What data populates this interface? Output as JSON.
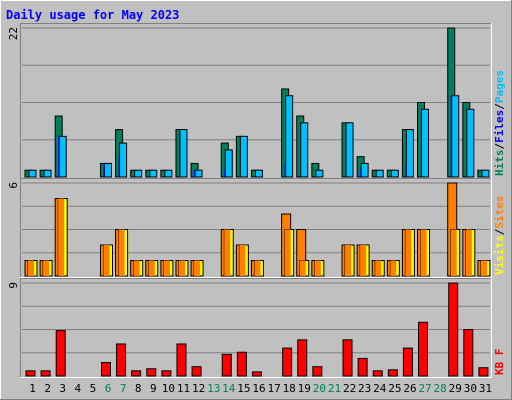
{
  "title": "Daily usage for May 2023",
  "colors": {
    "background": "#c0c0c0",
    "title": "#0000ff",
    "hits": "#00805c",
    "files": "#00c0ff",
    "pages": "#00c0ff",
    "visits": "#ffff00",
    "sites": "#ff8000",
    "kbytes": "#ff0000",
    "weekend": "#00805c",
    "weekday": "#000000"
  },
  "chart_data": [
    {
      "type": "bar",
      "panel": "hits-files-pages",
      "categories": [
        "1",
        "2",
        "3",
        "4",
        "5",
        "6",
        "7",
        "8",
        "9",
        "10",
        "11",
        "12",
        "13",
        "14",
        "15",
        "16",
        "17",
        "18",
        "19",
        "20",
        "21",
        "22",
        "23",
        "24",
        "25",
        "26",
        "27",
        "28",
        "29",
        "30",
        "31"
      ],
      "weekend_days": [
        "6",
        "7",
        "13",
        "14",
        "20",
        "21",
        "27",
        "28"
      ],
      "scale_max_label": "22",
      "ylim": [
        0,
        22
      ],
      "legend": [
        {
          "label": "Hits",
          "color": "#00805c"
        },
        {
          "label": "Files",
          "color": "#0000ff"
        },
        {
          "label": "Pages",
          "color": "#00c0ff"
        }
      ],
      "separator": "/",
      "series": [
        {
          "name": "Hits",
          "values": [
            1,
            1,
            9,
            0,
            0,
            2,
            7,
            1,
            1,
            1,
            7,
            2,
            0,
            5,
            6,
            1,
            0,
            13,
            9,
            2,
            0,
            8,
            3,
            1,
            1,
            7,
            11,
            0,
            22,
            11,
            1
          ]
        },
        {
          "name": "Files",
          "values": [
            1,
            1,
            6,
            0,
            0,
            2,
            5,
            1,
            1,
            1,
            7,
            1,
            0,
            4,
            6,
            1,
            0,
            12,
            8,
            1,
            0,
            8,
            2,
            1,
            1,
            7,
            10,
            0,
            12,
            10,
            1
          ]
        },
        {
          "name": "Pages",
          "values": [
            0,
            0,
            6,
            0,
            0,
            2,
            3,
            0,
            0,
            0,
            0,
            1,
            0,
            1,
            0,
            0,
            0,
            2,
            0,
            0,
            0,
            0,
            1,
            0,
            0,
            2,
            0,
            0,
            12,
            0,
            0
          ]
        }
      ]
    },
    {
      "type": "bar",
      "panel": "visits-sites",
      "categories": [
        "1",
        "2",
        "3",
        "4",
        "5",
        "6",
        "7",
        "8",
        "9",
        "10",
        "11",
        "12",
        "13",
        "14",
        "15",
        "16",
        "17",
        "18",
        "19",
        "20",
        "21",
        "22",
        "23",
        "24",
        "25",
        "26",
        "27",
        "28",
        "29",
        "30",
        "31"
      ],
      "scale_max_label": "6",
      "ylim": [
        0,
        6
      ],
      "legend": [
        {
          "label": "Visits",
          "color": "#ffff00"
        },
        {
          "label": "Sites",
          "color": "#ff8000"
        }
      ],
      "separator": "/",
      "series": [
        {
          "name": "Visits",
          "values": [
            1,
            1,
            5,
            0,
            0,
            2,
            3,
            1,
            1,
            1,
            1,
            1,
            0,
            3,
            2,
            1,
            0,
            3,
            1,
            1,
            0,
            2,
            2,
            1,
            1,
            3,
            3,
            0,
            3,
            3,
            1
          ]
        },
        {
          "name": "Sites",
          "values": [
            1,
            1,
            5,
            0,
            0,
            2,
            3,
            1,
            1,
            1,
            1,
            1,
            0,
            3,
            2,
            1,
            0,
            4,
            3,
            1,
            0,
            2,
            2,
            1,
            1,
            3,
            3,
            0,
            6,
            3,
            1
          ]
        }
      ]
    },
    {
      "type": "bar",
      "panel": "kbytes",
      "categories": [
        "1",
        "2",
        "3",
        "4",
        "5",
        "6",
        "7",
        "8",
        "9",
        "10",
        "11",
        "12",
        "13",
        "14",
        "15",
        "16",
        "17",
        "18",
        "19",
        "20",
        "21",
        "22",
        "23",
        "24",
        "25",
        "26",
        "27",
        "28",
        "29",
        "30",
        "31"
      ],
      "scale_max_label": "9",
      "ylim": [
        0,
        9
      ],
      "legend": [
        {
          "label": "KB F",
          "color": "#ff0000"
        }
      ],
      "series": [
        {
          "name": "KB F",
          "values": [
            0.5,
            0.5,
            4.4,
            0,
            0,
            1.3,
            3.1,
            0.5,
            0.7,
            0.5,
            3.1,
            0.9,
            0,
            2.1,
            2.3,
            0.4,
            0,
            2.7,
            3.5,
            0.9,
            0,
            3.5,
            1.7,
            0.5,
            0.6,
            2.7,
            5.2,
            0,
            9.0,
            4.5,
            0.8
          ]
        }
      ]
    }
  ]
}
